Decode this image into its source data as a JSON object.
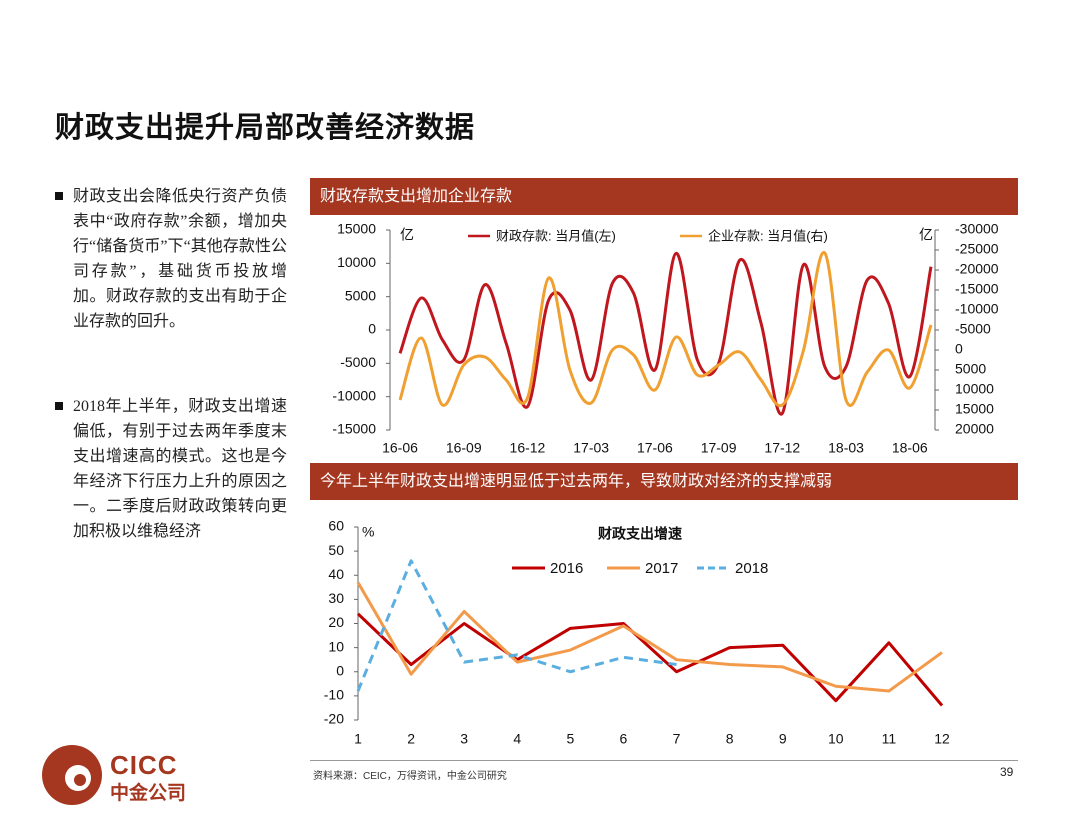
{
  "title": "财政支出提升局部改善经济数据",
  "bullets": [
    "财政支出会降低央行资产负债表中“政府存款”余额，增加央行“储备货币”下“其他存款性公司存款”，基础货币投放增加。财政存款的支出有助于企业存款的回升。",
    "2018年上半年，财政支出增速偏低，有别于过去两年季度末支出增速高的模式。这也是今年经济下行压力上升的原因之一。二季度后财政政策转向更加积极以维稳经济"
  ],
  "footer": {
    "source": "资料来源：CEIC，万得资讯，中金公司研究",
    "page": "39"
  },
  "logo": {
    "en": "CICC",
    "cn": "中金公司"
  },
  "chart_data": [
    {
      "type": "line",
      "title": "财政存款支出增加企业存款",
      "smooth": true,
      "y_unit": "亿",
      "y2_unit": "亿",
      "categories": [
        "16-06",
        null,
        null,
        "16-09",
        null,
        null,
        "16-12",
        null,
        null,
        "17-03",
        null,
        null,
        "17-06",
        null,
        null,
        "17-09",
        null,
        null,
        "17-12",
        null,
        null,
        "18-03",
        null,
        null,
        "18-06",
        null
      ],
      "series": [
        {
          "name": "财政存款: 当月值(左)",
          "color": "#c0161e",
          "values": [
            -3500,
            4800,
            -1500,
            -4500,
            6800,
            -2000,
            -11500,
            4500,
            3000,
            -7500,
            7000,
            5500,
            -6000,
            11500,
            -4500,
            -5000,
            10500,
            1000,
            -12500,
            9800,
            -5500,
            -5500,
            7500,
            4000,
            -7000,
            9500
          ]
        },
        {
          "name": "企业存款: 当月值(右)",
          "color": "#f0a030",
          "axis": "y2",
          "values": [
            12500,
            -3000,
            13750,
            3750,
            1750,
            7500,
            12000,
            -18000,
            5000,
            13250,
            0,
            1250,
            10000,
            -3250,
            6250,
            3750,
            500,
            7500,
            13750,
            0,
            -24250,
            12500,
            5500,
            0,
            9500,
            -6250
          ]
        }
      ],
      "ylim": [
        -15000,
        15000
      ],
      "yticks": [
        -15000,
        -10000,
        -5000,
        0,
        5000,
        10000,
        15000
      ],
      "y2lim": [
        -30000,
        20000
      ],
      "y2_inverted": true,
      "y2ticks": [
        -30000,
        -25000,
        -20000,
        -15000,
        -10000,
        -5000,
        0,
        5000,
        10000,
        15000,
        20000
      ]
    },
    {
      "type": "line",
      "title": "财政支出增速",
      "y_unit": "%",
      "x": [
        1,
        2,
        3,
        4,
        5,
        6,
        7,
        8,
        9,
        10,
        11,
        12
      ],
      "xlim": [
        1,
        12
      ],
      "xticks": [
        1,
        2,
        3,
        4,
        5,
        6,
        7,
        8,
        9,
        10,
        11,
        12
      ],
      "ylim": [
        -20,
        60
      ],
      "yticks": [
        -20,
        -10,
        0,
        10,
        20,
        30,
        40,
        50,
        60
      ],
      "series": [
        {
          "name": "2016",
          "color": "#c00000",
          "values": [
            24,
            3,
            20,
            5,
            18,
            20,
            0,
            10,
            11,
            -12,
            12,
            -14
          ]
        },
        {
          "name": "2017",
          "color": "#f39a4a",
          "values": [
            37,
            -1,
            25,
            4,
            9,
            19,
            5,
            3,
            2,
            -6,
            -8,
            8
          ]
        },
        {
          "name": "2018",
          "color": "#5aaee0",
          "dashed": true,
          "values": [
            -8,
            46,
            4,
            7,
            0,
            6,
            3,
            null,
            null,
            null,
            null,
            null
          ]
        }
      ]
    }
  ]
}
